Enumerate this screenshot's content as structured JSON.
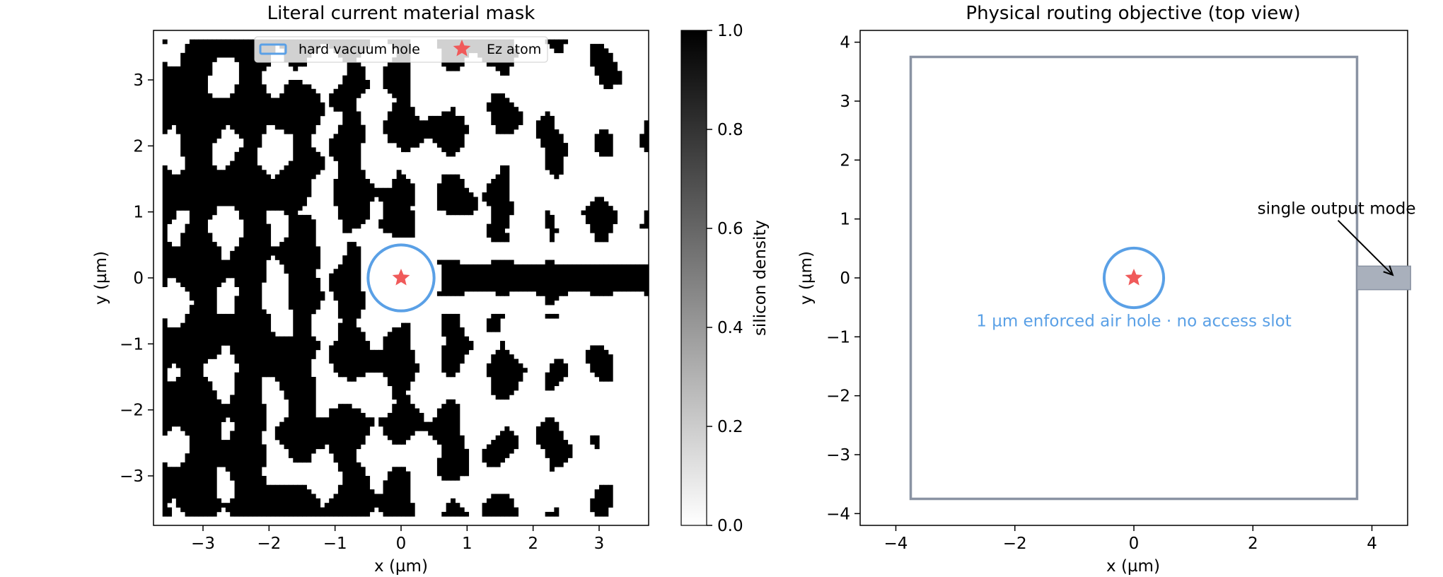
{
  "chart_data": [
    {
      "type": "heatmap",
      "title": "Literal current material mask",
      "xlabel": "x (µm)",
      "ylabel": "y (µm)",
      "xlim": [
        -3.75,
        3.75
      ],
      "ylim": [
        -3.75,
        3.75
      ],
      "x_ticks": [
        -3,
        -2,
        -1,
        0,
        1,
        2,
        3
      ],
      "y_ticks": [
        -3,
        -2,
        -1,
        0,
        1,
        2,
        3
      ],
      "tick_labels_x": [
        "−3",
        "−2",
        "−1",
        "0",
        "1",
        "2",
        "3"
      ],
      "tick_labels_y": [
        "−3",
        "−2",
        "−1",
        "0",
        "1",
        "2",
        "3"
      ],
      "colormap": "gray_r",
      "colorbar": {
        "label": "silicon density",
        "range": [
          0.0,
          1.0
        ],
        "ticks": [
          0.0,
          0.2,
          0.4,
          0.6,
          0.8,
          1.0
        ],
        "tick_labels": [
          "0.0",
          "0.2",
          "0.4",
          "0.6",
          "0.8",
          "1.0"
        ]
      },
      "design_region": {
        "x": [
          -3.6,
          3.75
        ],
        "y": [
          -3.6,
          3.6
        ]
      },
      "vacuum_hole": {
        "center": [
          0,
          0
        ],
        "radius": 0.5,
        "color": "#5aa0e6"
      },
      "source": {
        "x": 0,
        "y": 0,
        "color": "#f05a5a"
      },
      "legend": {
        "placement": "top-center",
        "entries": [
          {
            "label": "hard vacuum hole",
            "marker": "circle-outline",
            "color": "#5aa0e6"
          },
          {
            "label": "Ez atom",
            "marker": "star",
            "color": "#f05a5a"
          }
        ]
      }
    },
    {
      "type": "diagram",
      "title": "Physical routing objective (top view)",
      "xlabel": "x (µm)",
      "ylabel": "y (µm)",
      "xlim": [
        -4.6,
        4.6
      ],
      "ylim": [
        -4.2,
        4.2
      ],
      "x_ticks": [
        -4,
        -2,
        0,
        2,
        4
      ],
      "y_ticks": [
        -4,
        -3,
        -2,
        -1,
        0,
        1,
        2,
        3,
        4
      ],
      "tick_labels_x": [
        "−4",
        "−2",
        "0",
        "2",
        "4"
      ],
      "tick_labels_y": [
        "−4",
        "−3",
        "−2",
        "−1",
        "0",
        "1",
        "2",
        "3",
        "4"
      ],
      "design_box": {
        "x": [
          -3.75,
          3.75
        ],
        "y": [
          -3.75,
          3.75
        ],
        "color": "#8a93a3"
      },
      "output_waveguide": {
        "x": [
          3.75,
          4.65
        ],
        "y": [
          -0.2,
          0.2
        ],
        "color": "#a9b0bc"
      },
      "air_hole": {
        "center": [
          0,
          0
        ],
        "radius": 0.5,
        "color": "#5aa0e6"
      },
      "source": {
        "x": 0,
        "y": 0,
        "color": "#f05a5a"
      },
      "annotations": [
        {
          "text": "single output mode",
          "text_at": [
            1.98,
            1.18
          ],
          "arrow_to": [
            4.35,
            0.05
          ]
        },
        {
          "text": "1 µm enforced air hole · no access slot",
          "at": [
            0,
            -0.75
          ],
          "color": "#5aa0e6"
        }
      ]
    }
  ]
}
